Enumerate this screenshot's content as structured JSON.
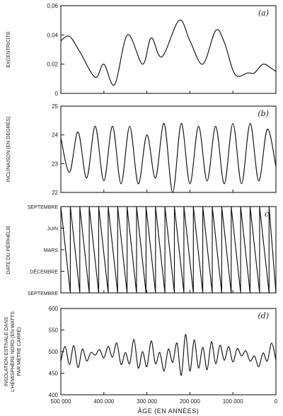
{
  "x_axis": {
    "title": "ÂGE (EN ANNÉES)",
    "ticks": [
      500000,
      400000,
      300000,
      200000,
      100000,
      0
    ],
    "tick_labels": [
      "500 000",
      "400 000",
      "300 000",
      "200 000",
      "100 000",
      "0"
    ]
  },
  "chart_data": [
    {
      "type": "line",
      "panel_label": "(a)",
      "ylabel": "EXCENTRICITÉ",
      "ylim": [
        0,
        0.06
      ],
      "y_ticks": [
        0,
        0.02,
        0.04,
        0.06
      ],
      "y_tick_labels": [
        "0",
        "0,02",
        "0,04",
        "0,06"
      ],
      "xlim": [
        500000,
        0
      ],
      "x": [
        500000,
        480000,
        455000,
        420000,
        400000,
        375000,
        345000,
        310000,
        290000,
        265000,
        225000,
        200000,
        170000,
        140000,
        120000,
        95000,
        65000,
        50000,
        30000,
        10000,
        0
      ],
      "y": [
        0.036,
        0.039,
        0.028,
        0.011,
        0.02,
        0.006,
        0.04,
        0.02,
        0.038,
        0.025,
        0.05,
        0.036,
        0.02,
        0.043,
        0.035,
        0.013,
        0.014,
        0.014,
        0.02,
        0.017,
        0.015
      ]
    },
    {
      "type": "line",
      "panel_label": "(b)",
      "ylabel": "INCLINAISON (EN DEGRÉS)",
      "ylim": [
        22,
        25
      ],
      "y_ticks": [
        22,
        23,
        24,
        25
      ],
      "y_tick_labels": [
        "22",
        "23",
        "24",
        "25"
      ],
      "xlim": [
        500000,
        0
      ],
      "x": [
        500000,
        480000,
        460000,
        440000,
        420000,
        400000,
        380000,
        360000,
        340000,
        320000,
        300000,
        280000,
        260000,
        240000,
        220000,
        200000,
        180000,
        160000,
        140000,
        120000,
        100000,
        80000,
        60000,
        40000,
        20000,
        0
      ],
      "y": [
        23.9,
        22.7,
        24.1,
        22.5,
        24.3,
        22.4,
        24.3,
        22.3,
        24.3,
        22.3,
        24.0,
        22.5,
        24.4,
        22.0,
        24.4,
        22.3,
        24.3,
        22.4,
        24.3,
        22.3,
        24.4,
        22.3,
        24.4,
        22.4,
        24.2,
        22.9
      ]
    },
    {
      "type": "line",
      "panel_label": "c",
      "ylabel": "DATE DU PÉRIHÉLIE",
      "ylim": [
        0,
        4
      ],
      "y_ticks": [
        0,
        1,
        2,
        3,
        4
      ],
      "y_tick_labels": [
        "SEPTEMBRE",
        "DÉCEMBRE",
        "MARS",
        "JUIN",
        "SEPTEMBRE"
      ],
      "xlim": [
        500000,
        0
      ],
      "description_of_series": "sawtooth, one cycle per precession period",
      "cycle_start_ages": [
        500000,
        478000,
        456000,
        434000,
        412000,
        390000,
        368000,
        346000,
        324000,
        302000,
        280000,
        258000,
        236000,
        214000,
        192000,
        170000,
        148000,
        126000,
        104000,
        82000,
        60000,
        38000,
        16000
      ],
      "y_at_start": 4,
      "y_at_end": 0
    },
    {
      "type": "line",
      "panel_label": "(d)",
      "ylabel": "INSOLATION ESTIVALE DANS L'HÉMISPHÈRE NORD (EN WATTS PAR MÈTRE CARRÉ)",
      "ylabel_lines": [
        "INSOLATION ESTIVALE DANS",
        "L'HÉMISPHÈRE NORD (EN WATTS",
        "PAR MÈTRE CARRÉ)"
      ],
      "ylim": [
        400,
        600
      ],
      "y_ticks": [
        400,
        450,
        500,
        550,
        600
      ],
      "y_tick_labels": [
        "400",
        "450",
        "500",
        "550",
        "600"
      ],
      "xlim": [
        500000,
        0
      ],
      "x": [
        500000,
        490000,
        480000,
        470000,
        460000,
        450000,
        440000,
        430000,
        420000,
        410000,
        400000,
        390000,
        380000,
        370000,
        360000,
        350000,
        340000,
        330000,
        320000,
        310000,
        300000,
        290000,
        280000,
        270000,
        260000,
        250000,
        240000,
        230000,
        220000,
        210000,
        200000,
        190000,
        180000,
        170000,
        160000,
        150000,
        140000,
        130000,
        120000,
        110000,
        100000,
        90000,
        80000,
        70000,
        60000,
        50000,
        40000,
        30000,
        20000,
        10000,
        0
      ],
      "y": [
        478,
        512,
        470,
        514,
        463,
        506,
        478,
        498,
        492,
        505,
        485,
        512,
        487,
        520,
        470,
        498,
        472,
        528,
        462,
        500,
        465,
        525,
        472,
        498,
        455,
        506,
        475,
        520,
        445,
        540,
        455,
        527,
        462,
        510,
        458,
        523,
        472,
        515,
        480,
        512,
        476,
        507,
        490,
        502,
        478,
        490,
        465,
        497,
        478,
        520,
        480
      ]
    }
  ]
}
